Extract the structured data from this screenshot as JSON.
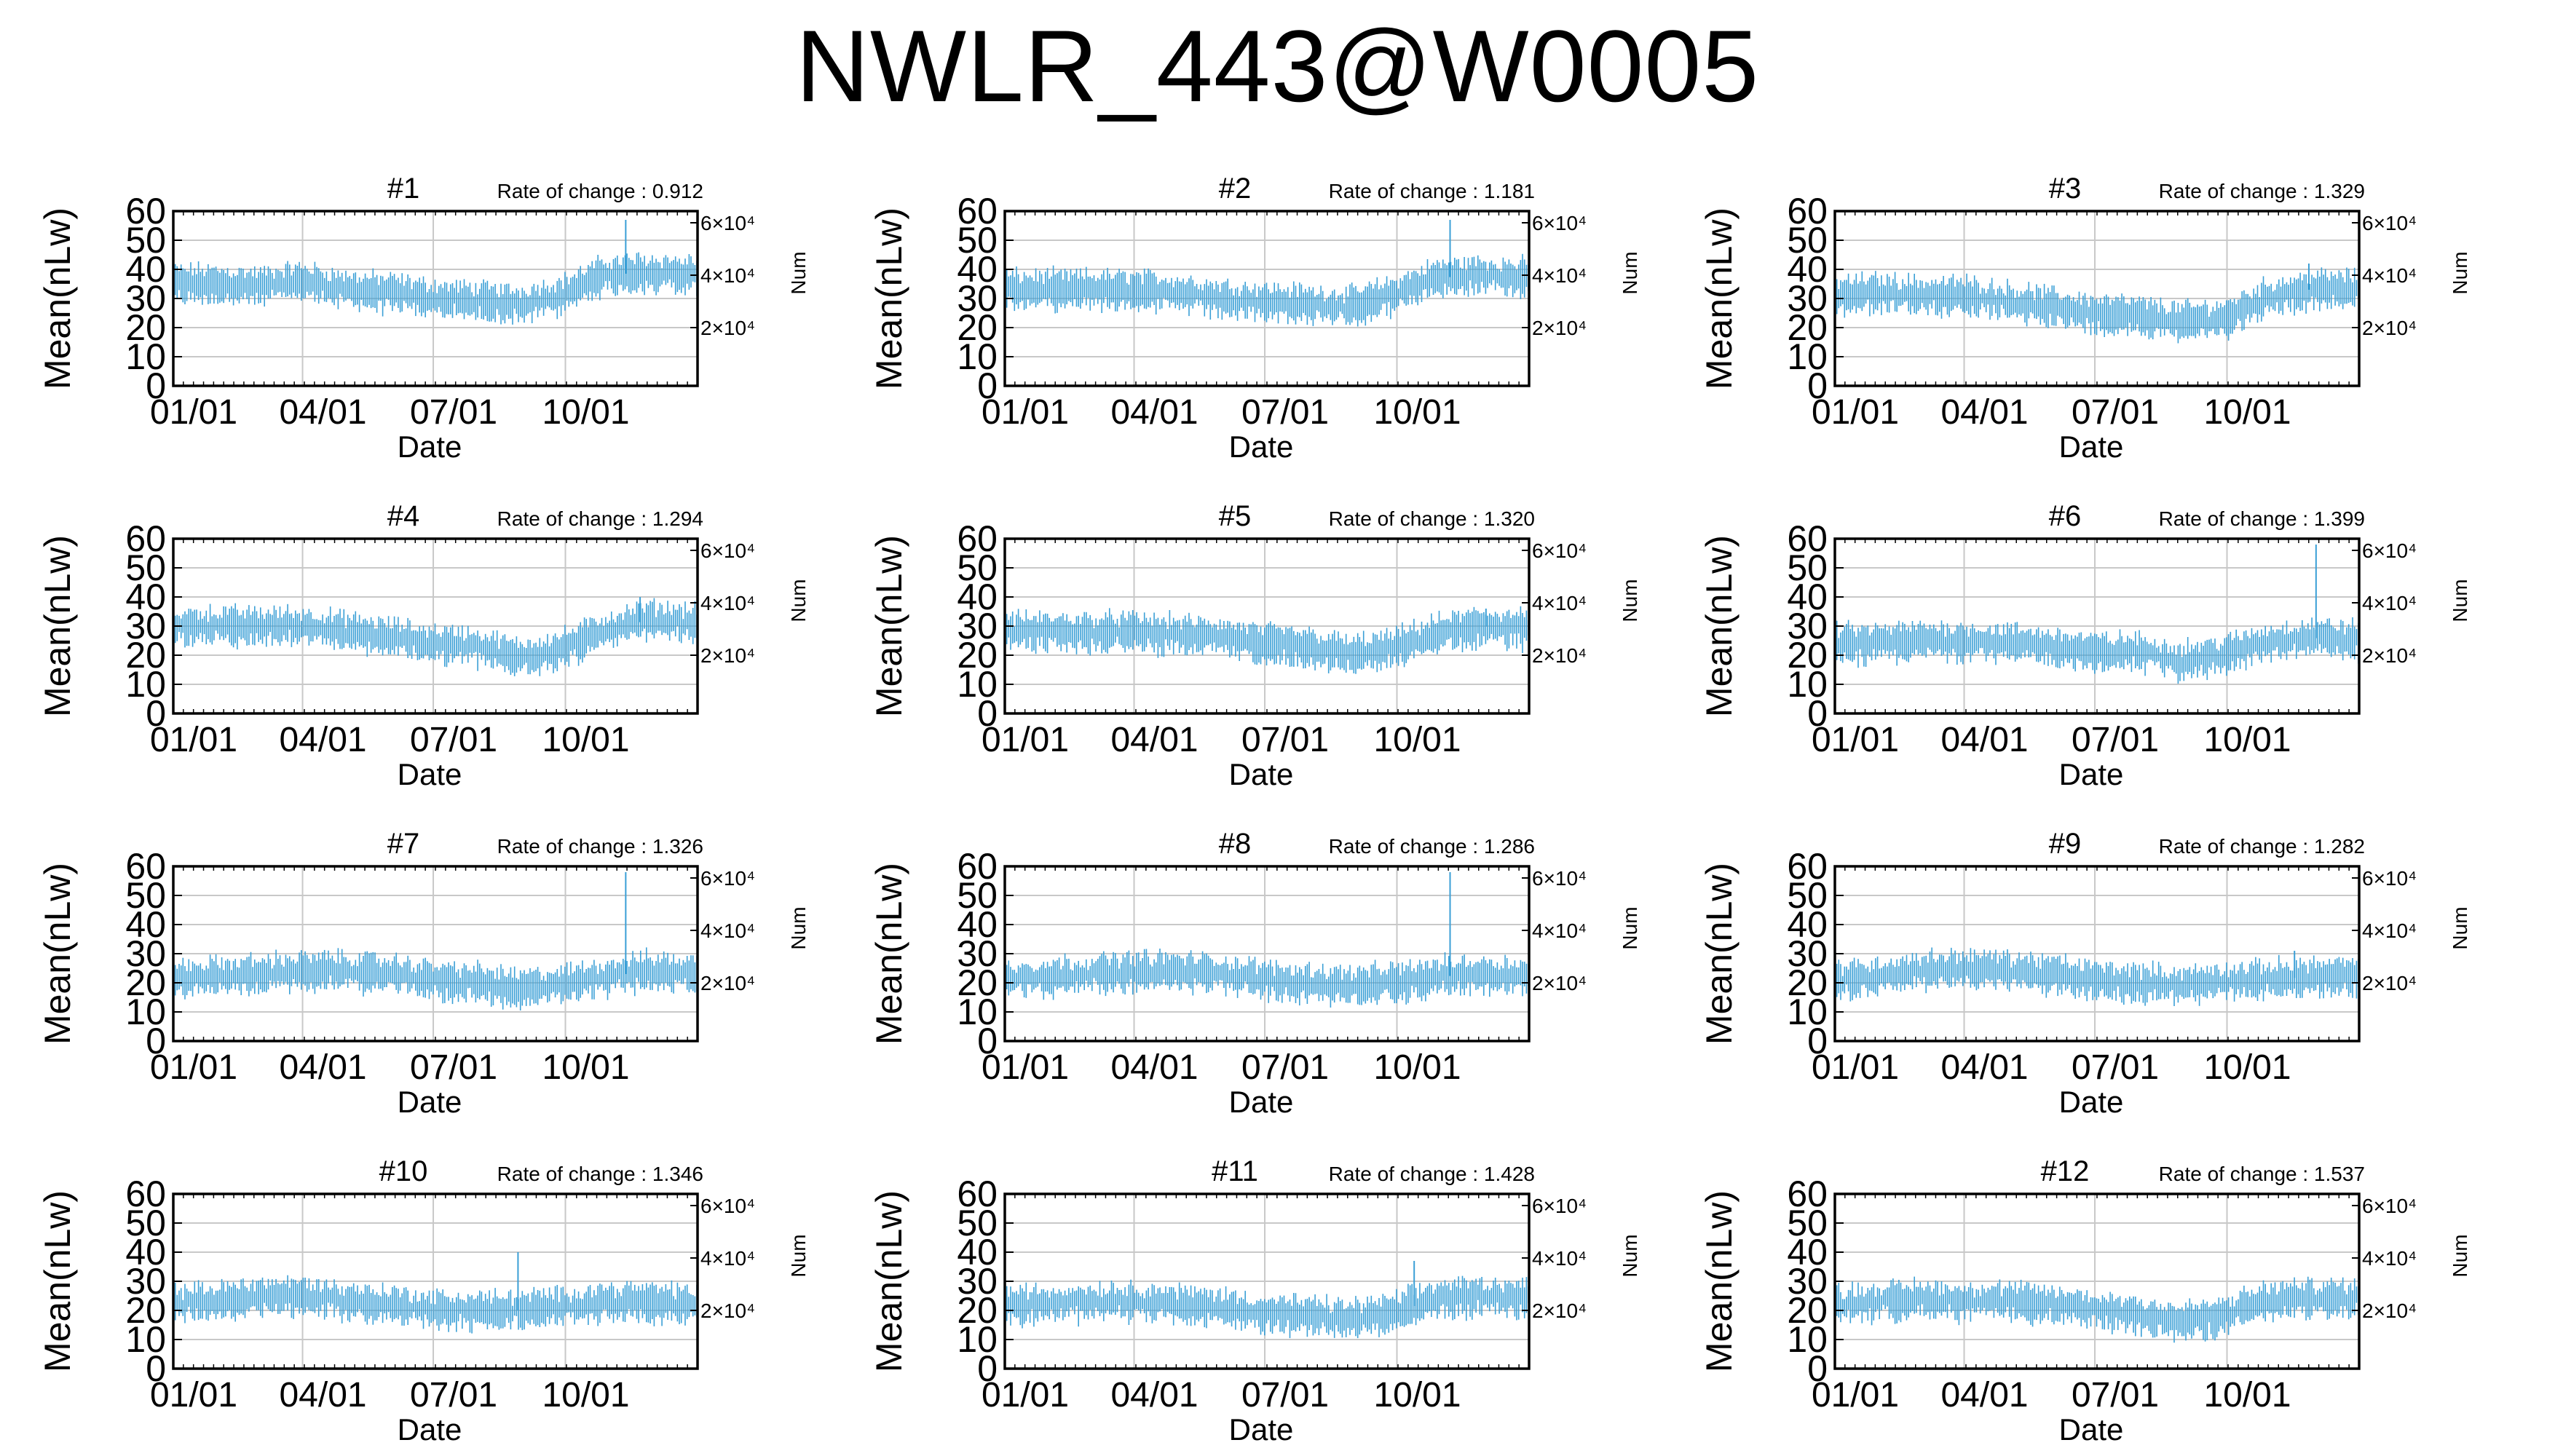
{
  "title": "NWLR_443@W0005",
  "panel_labels": {
    "ylabel": "Mean(nLw)",
    "y2label": "Num",
    "xlabel": "Date",
    "rate_prefix": "Rate of change : "
  },
  "chart_data": [
    {
      "type": "line",
      "title": "#1",
      "rate_of_change": "0.912",
      "yticks": [
        0,
        10,
        20,
        30,
        40,
        50,
        60
      ],
      "ylim": [
        0,
        60
      ],
      "y2ticks": [
        "2×10⁴",
        "4×10⁴",
        "6×10⁴"
      ],
      "xticks": [
        "01/01",
        "04/01",
        "07/01",
        "10/01"
      ],
      "series": [
        {
          "x": [
            0,
            30,
            60,
            90,
            120,
            150,
            180,
            210,
            240,
            270,
            300,
            330,
            364
          ],
          "values": [
            35,
            35,
            34,
            36,
            33,
            32,
            30,
            29,
            28,
            31,
            38,
            39,
            38
          ]
        }
      ],
      "spikes": [
        {
          "x": 315,
          "values": 57
        }
      ]
    },
    {
      "type": "line",
      "title": "#2",
      "rate_of_change": "1.181",
      "yticks": [
        0,
        10,
        20,
        30,
        40,
        50,
        60
      ],
      "ylim": [
        0,
        60
      ],
      "y2ticks": [
        "2×10⁴",
        "4×10⁴",
        "6×10⁴"
      ],
      "xticks": [
        "01/01",
        "04/01",
        "07/01",
        "10/01"
      ],
      "series": [
        {
          "x": [
            0,
            30,
            60,
            90,
            120,
            150,
            180,
            210,
            240,
            270,
            300,
            330,
            364
          ],
          "values": [
            33,
            33,
            33,
            33,
            32,
            30,
            29,
            28,
            27,
            31,
            37,
            38,
            37
          ]
        }
      ],
      "spikes": [
        {
          "x": 310,
          "values": 57
        }
      ]
    },
    {
      "type": "line",
      "title": "#3",
      "rate_of_change": "1.329",
      "yticks": [
        0,
        10,
        20,
        30,
        40,
        50,
        60
      ],
      "ylim": [
        0,
        60
      ],
      "y2ticks": [
        "2×10⁴",
        "4×10⁴",
        "6×10⁴"
      ],
      "xticks": [
        "01/01",
        "04/01",
        "07/01",
        "10/01"
      ],
      "series": [
        {
          "x": [
            0,
            30,
            60,
            90,
            120,
            150,
            180,
            210,
            240,
            270,
            300,
            330,
            364
          ],
          "values": [
            31,
            32,
            31,
            31,
            29,
            27,
            25,
            24,
            22,
            23,
            30,
            33,
            33
          ]
        }
      ],
      "spikes": [
        {
          "x": 330,
          "values": 42
        }
      ]
    },
    {
      "type": "line",
      "title": "#4",
      "rate_of_change": "1.294",
      "yticks": [
        0,
        10,
        20,
        30,
        40,
        50,
        60
      ],
      "ylim": [
        0,
        60
      ],
      "y2ticks": [
        "2×10⁴",
        "4×10⁴",
        "6×10⁴"
      ],
      "xticks": [
        "01/01",
        "04/01",
        "07/01",
        "10/01"
      ],
      "series": [
        {
          "x": [
            0,
            30,
            60,
            90,
            120,
            150,
            180,
            210,
            240,
            270,
            300,
            330,
            364
          ],
          "values": [
            30,
            30,
            30,
            30,
            28,
            26,
            24,
            23,
            19,
            22,
            28,
            32,
            31
          ]
        }
      ],
      "spikes": [
        {
          "x": 325,
          "values": 40
        }
      ]
    },
    {
      "type": "line",
      "title": "#5",
      "rate_of_change": "1.320",
      "yticks": [
        0,
        10,
        20,
        30,
        40,
        50,
        60
      ],
      "ylim": [
        0,
        60
      ],
      "y2ticks": [
        "2×10⁴",
        "4×10⁴",
        "6×10⁴"
      ],
      "xticks": [
        "01/01",
        "04/01",
        "07/01",
        "10/01"
      ],
      "series": [
        {
          "x": [
            0,
            30,
            60,
            90,
            120,
            150,
            180,
            210,
            240,
            270,
            300,
            330,
            364
          ],
          "values": [
            28,
            28,
            28,
            28,
            27,
            26,
            24,
            23,
            20,
            22,
            27,
            30,
            29
          ]
        }
      ],
      "spikes": [
        {
          "x": 335,
          "values": 36
        }
      ]
    },
    {
      "type": "line",
      "title": "#6",
      "rate_of_change": "1.399",
      "yticks": [
        0,
        10,
        20,
        30,
        40,
        50,
        60
      ],
      "ylim": [
        0,
        60
      ],
      "y2ticks": [
        "2×10⁴",
        "4×10⁴",
        "6×10⁴"
      ],
      "xticks": [
        "01/01",
        "04/01",
        "07/01",
        "10/01"
      ],
      "series": [
        {
          "x": [
            0,
            30,
            60,
            90,
            120,
            150,
            180,
            210,
            240,
            270,
            300,
            330,
            364
          ],
          "values": [
            24,
            24,
            25,
            25,
            24,
            23,
            21,
            21,
            18,
            20,
            24,
            26,
            25
          ]
        }
      ],
      "spikes": [
        {
          "x": 335,
          "values": 58
        }
      ]
    },
    {
      "type": "line",
      "title": "#7",
      "rate_of_change": "1.326",
      "yticks": [
        0,
        10,
        20,
        30,
        40,
        50,
        60
      ],
      "ylim": [
        0,
        60
      ],
      "y2ticks": [
        "2×10⁴",
        "4×10⁴",
        "6×10⁴"
      ],
      "xticks": [
        "01/01",
        "04/01",
        "07/01",
        "10/01"
      ],
      "series": [
        {
          "x": [
            0,
            30,
            60,
            90,
            120,
            150,
            180,
            210,
            240,
            270,
            300,
            330,
            364
          ],
          "values": [
            21,
            22,
            23,
            24,
            24,
            23,
            21,
            20,
            18,
            19,
            22,
            24,
            23
          ]
        }
      ],
      "spikes": [
        {
          "x": 315,
          "values": 58
        }
      ]
    },
    {
      "type": "line",
      "title": "#8",
      "rate_of_change": "1.286",
      "yticks": [
        0,
        10,
        20,
        30,
        40,
        50,
        60
      ],
      "ylim": [
        0,
        60
      ],
      "y2ticks": [
        "2×10⁴",
        "4×10⁴",
        "6×10⁴"
      ],
      "xticks": [
        "01/01",
        "04/01",
        "07/01",
        "10/01"
      ],
      "series": [
        {
          "x": [
            0,
            30,
            60,
            90,
            120,
            150,
            180,
            210,
            240,
            270,
            300,
            330,
            364
          ],
          "values": [
            21,
            22,
            23,
            24,
            24,
            23,
            21,
            20,
            19,
            20,
            22,
            23,
            22
          ]
        }
      ],
      "spikes": [
        {
          "x": 310,
          "values": 58
        }
      ]
    },
    {
      "type": "line",
      "title": "#9",
      "rate_of_change": "1.282",
      "yticks": [
        0,
        10,
        20,
        30,
        40,
        50,
        60
      ],
      "ylim": [
        0,
        60
      ],
      "y2ticks": [
        "2×10⁴",
        "4×10⁴",
        "6×10⁴"
      ],
      "xticks": [
        "01/01",
        "04/01",
        "07/01",
        "10/01"
      ],
      "series": [
        {
          "x": [
            0,
            30,
            60,
            90,
            120,
            150,
            180,
            210,
            240,
            270,
            300,
            330,
            364
          ],
          "values": [
            21,
            22,
            24,
            25,
            24,
            23,
            21,
            20,
            19,
            20,
            21,
            22,
            22
          ]
        }
      ],
      "spikes": [
        {
          "x": 320,
          "values": 31
        }
      ]
    },
    {
      "type": "line",
      "title": "#10",
      "rate_of_change": "1.346",
      "yticks": [
        0,
        10,
        20,
        30,
        40,
        50,
        60
      ],
      "ylim": [
        0,
        60
      ],
      "y2ticks": [
        "2×10⁴",
        "4×10⁴",
        "6×10⁴"
      ],
      "xticks": [
        "01/01",
        "04/01",
        "07/01",
        "10/01"
      ],
      "series": [
        {
          "x": [
            0,
            30,
            60,
            90,
            120,
            150,
            180,
            210,
            240,
            270,
            300,
            330,
            364
          ],
          "values": [
            22,
            23,
            25,
            25,
            23,
            22,
            20,
            20,
            20,
            21,
            23,
            23,
            22
          ]
        }
      ],
      "spikes": [
        {
          "x": 240,
          "values": 40
        }
      ]
    },
    {
      "type": "line",
      "title": "#11",
      "rate_of_change": "1.428",
      "yticks": [
        0,
        10,
        20,
        30,
        40,
        50,
        60
      ],
      "ylim": [
        0,
        60
      ],
      "y2ticks": [
        "2×10⁴",
        "4×10⁴",
        "6×10⁴"
      ],
      "xticks": [
        "01/01",
        "04/01",
        "07/01",
        "10/01"
      ],
      "series": [
        {
          "x": [
            0,
            30,
            60,
            90,
            120,
            150,
            180,
            210,
            240,
            270,
            300,
            330,
            364
          ],
          "values": [
            22,
            22,
            23,
            23,
            22,
            21,
            19,
            18,
            17,
            19,
            24,
            25,
            24
          ]
        }
      ],
      "spikes": [
        {
          "x": 285,
          "values": 37
        }
      ]
    },
    {
      "type": "line",
      "title": "#12",
      "rate_of_change": "1.537",
      "yticks": [
        0,
        10,
        20,
        30,
        40,
        50,
        60
      ],
      "ylim": [
        0,
        60
      ],
      "y2ticks": [
        "2×10⁴",
        "4×10⁴",
        "6×10⁴"
      ],
      "xticks": [
        "01/01",
        "04/01",
        "07/01",
        "10/01"
      ],
      "series": [
        {
          "x": [
            0,
            30,
            60,
            90,
            120,
            150,
            180,
            210,
            240,
            270,
            300,
            330,
            364
          ],
          "values": [
            22,
            23,
            24,
            23,
            23,
            22,
            20,
            19,
            16,
            18,
            23,
            24,
            24
          ]
        }
      ],
      "spikes": []
    }
  ],
  "colors": {
    "series": "#3a9fd6",
    "grid": "#c8c8c8",
    "axis": "#000000"
  }
}
